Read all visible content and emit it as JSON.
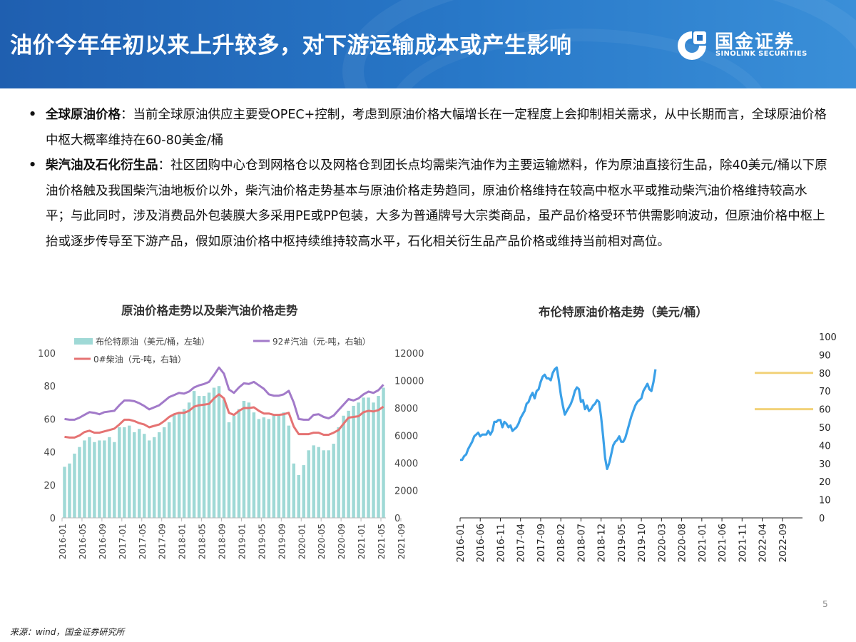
{
  "header": {
    "title": "油价今年年初以来上升较多，对下游运输成本或产生影响",
    "logo_cn": "国金证券",
    "logo_en": "SINOLINK SECURITIES"
  },
  "bullets": [
    {
      "key": "全球原油价格",
      "text": "：当前全球原油供应主要受OPEC+控制，考虑到原油价格大幅增长在一定程度上会抑制相关需求，从中长期而言，全球原油价格中枢大概率维持在60-80美金/桶"
    },
    {
      "key": "柴汽油及石化衍生品",
      "text": "：社区团购中心仓到网格仓以及网格仓到团长点均需柴汽油作为主要运输燃料，作为原油直接衍生品，除40美元/桶以下原油价格触及我国柴汽油地板价以外，柴汽油价格走势基本与原油价格走势趋同，原油价格维持在较高中枢水平或推动柴汽油价格维持较高水平；与此同时，涉及消费品外包装膜大多采用PE或PP包装，大多为普通牌号大宗类商品，虽产品价格受环节供需影响波动，但原油价格中枢上抬或逐步传导至下游产品，假如原油价格中枢持续维持较高水平，石化相关衍生品产品价格或维持当前相对高位。"
    }
  ],
  "footer": {
    "source": "来源：wind，国金证券研究所",
    "page": "5"
  },
  "colors": {
    "header": "#2571c0",
    "brent_bar": "#9fd9d6",
    "gasoline": "#a27ac9",
    "diesel": "#e57373",
    "brent_line": "#3aa0e8",
    "guide": "#f2d27a"
  },
  "chart_data": [
    {
      "type": "bar",
      "title": "原油价格走势以及柴汽油价格走势",
      "x_tick_labels": [
        "2016-01",
        "2016-05",
        "2016-09",
        "2017-01",
        "2017-05",
        "2017-09",
        "2018-01",
        "2018-05",
        "2018-09",
        "2019-01",
        "2019-05",
        "2019-09",
        "2020-01",
        "2020-05",
        "2020-09",
        "2021-01",
        "2021-05",
        "2021-09"
      ],
      "y_left": {
        "ylim": [
          0,
          100
        ],
        "ticks": [
          "0",
          "20",
          "40",
          "60",
          "80",
          "100"
        ]
      },
      "y_right": {
        "ylim": [
          0,
          12000
        ],
        "ticks": [
          "0",
          "2000",
          "4000",
          "6000",
          "8000",
          "10000",
          "12000"
        ]
      },
      "legend": [
        "布伦特原油（美元/桶，左轴）",
        "92#汽油（元-吨，右轴）",
        "0#柴油（元-吨，右轴）"
      ],
      "series": [
        {
          "name": "布伦特原油（美元/桶，左轴）",
          "type": "bar",
          "axis": "left",
          "values": [
            31,
            33,
            39,
            43,
            47,
            49,
            46,
            47,
            47,
            49,
            46,
            55,
            55,
            56,
            52,
            54,
            51,
            47,
            49,
            52,
            55,
            58,
            63,
            64,
            66,
            70,
            77,
            74,
            74,
            76,
            79,
            80,
            72,
            58,
            62,
            66,
            71,
            70,
            64,
            60,
            61,
            60,
            62,
            63,
            64,
            56,
            33,
            26,
            32,
            41,
            44,
            43,
            41,
            41,
            45,
            55,
            62,
            65,
            68,
            70,
            73,
            73,
            70,
            74,
            79
          ]
        },
        {
          "name": "92#汽油（元-吨，右轴）",
          "type": "line",
          "axis": "right",
          "values": [
            7200,
            7150,
            7150,
            7300,
            7500,
            7700,
            7650,
            7550,
            7700,
            7750,
            7800,
            8200,
            8550,
            8550,
            8500,
            8350,
            8150,
            7900,
            8050,
            8200,
            8500,
            8800,
            8950,
            9100,
            9050,
            9200,
            9500,
            9650,
            9750,
            9900,
            10400,
            10950,
            10500,
            9350,
            9100,
            9500,
            9800,
            9750,
            9900,
            9650,
            9400,
            9000,
            8900,
            8900,
            9000,
            9250,
            8400,
            7200,
            7150,
            7150,
            7500,
            7550,
            7350,
            7250,
            7450,
            7850,
            8250,
            8650,
            8550,
            8700,
            9000,
            9200,
            9100,
            9300,
            9700
          ]
        },
        {
          "name": "0#柴油（元-吨，右轴）",
          "type": "line",
          "axis": "right",
          "values": [
            5900,
            5850,
            5850,
            6000,
            6250,
            6350,
            6200,
            6200,
            6300,
            6400,
            6500,
            6800,
            7150,
            7150,
            7050,
            6900,
            6800,
            6600,
            6700,
            6800,
            7050,
            7350,
            7550,
            7650,
            7650,
            7800,
            8100,
            8200,
            8250,
            8300,
            8700,
            9000,
            8700,
            7650,
            7500,
            7800,
            8000,
            8000,
            8050,
            7800,
            7600,
            7600,
            7500,
            7500,
            7550,
            7650,
            6650,
            6100,
            6100,
            6100,
            6200,
            6200,
            6050,
            6050,
            6200,
            6400,
            6850,
            7300,
            7350,
            7400,
            7700,
            7800,
            7750,
            7850,
            8100
          ]
        }
      ]
    },
    {
      "type": "line",
      "title": "布伦特原油价格走势（美元/桶）",
      "x_tick_labels": [
        "2016-01",
        "2016-06",
        "2016-11",
        "2017-04",
        "2017-09",
        "2018-02",
        "2018-07",
        "2018-12",
        "2019-05",
        "2019-10",
        "2020-03",
        "2020-08",
        "2021-01",
        "2021-06",
        "2021-11",
        "2022-04",
        "2022-09"
      ],
      "y_right": {
        "ylim": [
          0,
          100
        ],
        "ticks": [
          "0",
          "10",
          "20",
          "30",
          "40",
          "50",
          "60",
          "70",
          "80",
          "90",
          "100"
        ]
      },
      "guide_lines": [
        80,
        60
      ],
      "series": [
        {
          "name": "布伦特原油",
          "start": "2016-01",
          "freq": "half-month",
          "values": [
            32,
            32,
            34,
            35,
            38,
            40,
            42,
            45,
            46,
            47,
            45,
            46,
            46,
            46,
            48,
            46,
            48,
            53,
            53,
            54,
            54,
            50,
            53,
            52,
            50,
            51,
            48,
            49,
            50,
            52,
            55,
            57,
            59,
            63,
            64,
            67,
            69,
            66,
            70,
            71,
            75,
            78,
            79,
            77,
            77,
            76,
            80,
            82,
            83,
            76,
            68,
            62,
            57,
            59,
            61,
            63,
            66,
            70,
            72,
            71,
            64,
            65,
            60,
            62,
            59,
            60,
            62,
            63,
            65,
            64,
            56,
            45,
            33,
            27,
            30,
            35,
            40,
            42,
            43,
            45,
            42,
            42,
            44,
            48,
            52,
            56,
            59,
            62,
            64,
            65,
            66,
            70,
            72,
            74,
            71,
            70,
            75,
            82
          ]
        }
      ]
    }
  ]
}
